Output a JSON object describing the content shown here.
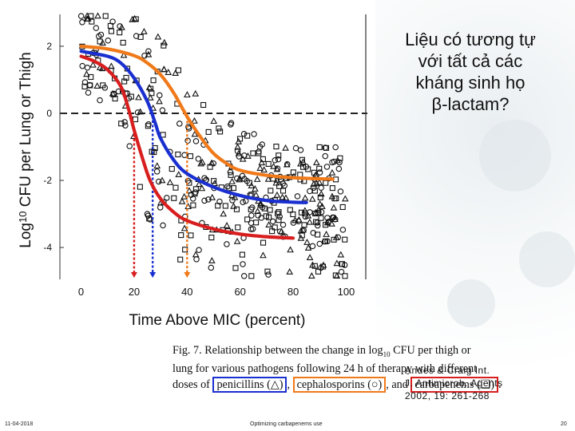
{
  "slide": {
    "title_lines": [
      "Liệu có tương tự",
      "với tất cả các",
      "kháng sinh họ",
      "β-lactam?"
    ],
    "reference_lines": [
      "Andes & Craig Int.",
      "J. Antimicrob. Agents",
      "2002, 19: 261-268"
    ],
    "footer_date": "11-04-2018",
    "footer_center": "Optimizing carbapenems use",
    "footer_page": "20"
  },
  "caption": {
    "line1": "Fig. 7. Relationship between the change in log",
    "line1_sub": "10",
    "line1_end": " CFU per thigh or",
    "line2": "lung for various pathogens following 24 h of therapy with different",
    "line3_pre": "doses of",
    "penicillins": "penicillins (△)",
    "sep1": ",",
    "cephalosporins": "cephalosporins (○)",
    "sep2": ", and",
    "carbapenems": "carbapenems (❑)",
    "end": "."
  },
  "colors": {
    "blue": "#1a2fd0",
    "orange": "#f07a1a",
    "red": "#d81e1e"
  },
  "chart_data": {
    "type": "scatter",
    "title": "",
    "xlabel": "Time Above MIC (percent)",
    "ylabel_pre": "Log",
    "ylabel_sub": "10",
    "ylabel_post": " CFU per Lung or Thigh",
    "xlim": [
      -8,
      108
    ],
    "ylim": [
      -4.95,
      2.95
    ],
    "xticks": [
      0,
      20,
      40,
      60,
      80,
      100
    ],
    "yticks": [
      2,
      0,
      -2,
      -4
    ],
    "baseline_y": 0,
    "series": [
      {
        "name": "cephalosporins (○)",
        "color": "#f07a1a",
        "x": [
          0,
          10,
          20,
          25,
          30,
          35,
          40,
          45,
          50,
          55,
          60,
          70,
          80,
          90,
          95
        ],
        "y": [
          2.0,
          1.92,
          1.72,
          1.5,
          1.15,
          0.6,
          -0.1,
          -0.7,
          -1.2,
          -1.5,
          -1.7,
          -1.85,
          -1.92,
          -1.95,
          -1.96
        ]
      },
      {
        "name": "penicillins (△)",
        "color": "#1a2fd0",
        "x": [
          0,
          10,
          15,
          20,
          25,
          28,
          30,
          35,
          40,
          50,
          60,
          70,
          80,
          85
        ],
        "y": [
          1.85,
          1.7,
          1.5,
          1.05,
          0.35,
          -0.3,
          -0.75,
          -1.4,
          -1.8,
          -2.2,
          -2.45,
          -2.6,
          -2.65,
          -2.66
        ]
      },
      {
        "name": "carbapenems (❑)",
        "color": "#d81e1e",
        "x": [
          0,
          5,
          10,
          15,
          18,
          20,
          23,
          26,
          30,
          35,
          40,
          50,
          60,
          70,
          80
        ],
        "y": [
          1.7,
          1.55,
          1.3,
          0.8,
          0.1,
          -0.5,
          -1.3,
          -2.0,
          -2.55,
          -2.95,
          -3.2,
          -3.45,
          -3.6,
          -3.68,
          -3.72
        ]
      }
    ],
    "dashed_drops": [
      {
        "x": 20,
        "color": "#d81e1e"
      },
      {
        "x": 27,
        "color": "#1a2fd0"
      },
      {
        "x": 40,
        "color": "#f07a1a"
      }
    ]
  }
}
